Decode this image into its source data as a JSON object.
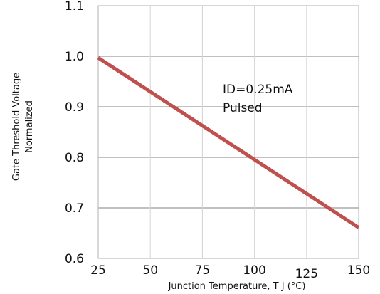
{
  "chart_data": {
    "type": "line",
    "xlabel": "Junction Temperature, T J  (°C)",
    "ylabel_lines": [
      "Gate Threshold Voltage",
      "Normalized"
    ],
    "xlim": [
      25,
      150
    ],
    "ylim": [
      0.6,
      1.1
    ],
    "x_ticks": [
      "25",
      "50",
      "75",
      "100",
      "125",
      "150"
    ],
    "y_ticks": [
      "0.6",
      "0.7",
      "0.8",
      "0.9",
      "1.0",
      "1.1"
    ],
    "grid": true,
    "annotations": [
      "ID=0.25mA",
      "Pulsed"
    ],
    "series": [
      {
        "color": "#c0504d",
        "x": [
          25,
          150
        ],
        "y": [
          0.997,
          0.661
        ]
      }
    ]
  }
}
